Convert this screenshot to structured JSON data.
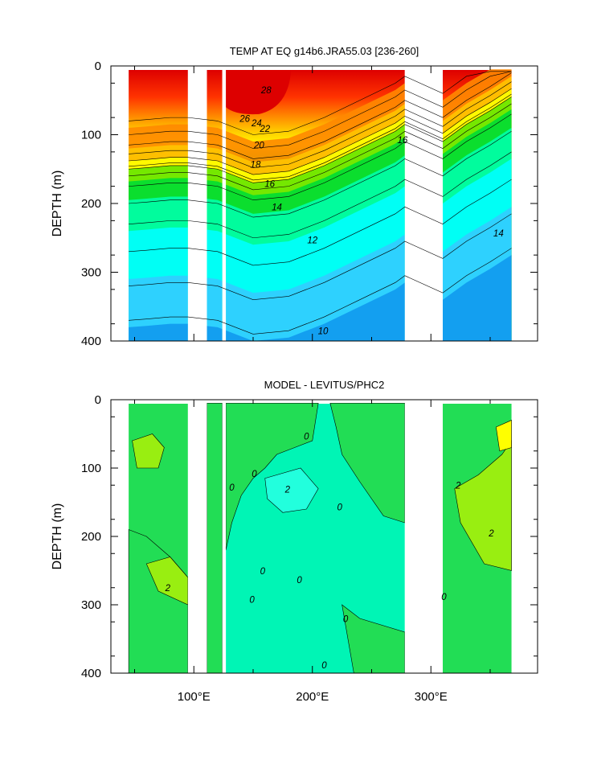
{
  "chart_data": [
    {
      "type": "heatmap",
      "title": "TEMP AT EQ g14b6.JRA55.03 [236-260]",
      "ylabel": "DEPTH (m)",
      "xlabel": "",
      "xlim": [
        30,
        390
      ],
      "ylim": [
        400,
        0
      ],
      "y_inverted": true,
      "xticks": [
        {
          "value": 100,
          "label": "100°E"
        },
        {
          "value": 200,
          "label": "200°E"
        },
        {
          "value": 300,
          "label": "300°E"
        }
      ],
      "yticks": [
        0,
        100,
        200,
        300,
        400
      ],
      "land_gaps": [
        [
          95,
          111
        ],
        [
          124,
          127
        ],
        [
          278,
          310
        ]
      ],
      "water_bands": [
        [
          45,
          95
        ],
        [
          111,
          124
        ],
        [
          127,
          278
        ],
        [
          310,
          368
        ]
      ],
      "thermocline": {
        "x": [
          45,
          60,
          80,
          95,
          120,
          150,
          180,
          210,
          240,
          270,
          278,
          310,
          330,
          350,
          368
        ],
        "depth_20C": [
          150,
          148,
          145,
          145,
          150,
          170,
          165,
          145,
          120,
          95,
          85,
          110,
          85,
          65,
          45
        ]
      },
      "contour_labels": [
        {
          "x": 161,
          "y": 40,
          "text": "28"
        },
        {
          "x": 143,
          "y": 81,
          "text": "26"
        },
        {
          "x": 153,
          "y": 88,
          "text": "24"
        },
        {
          "x": 160,
          "y": 96,
          "text": "22"
        },
        {
          "x": 155,
          "y": 120,
          "text": "20"
        },
        {
          "x": 152,
          "y": 148,
          "text": "18"
        },
        {
          "x": 164,
          "y": 176,
          "text": "16"
        },
        {
          "x": 170,
          "y": 210,
          "text": "14"
        },
        {
          "x": 200,
          "y": 258,
          "text": "12"
        },
        {
          "x": 209,
          "y": 390,
          "text": "10"
        },
        {
          "x": 276,
          "y": 112,
          "text": "16"
        },
        {
          "x": 357,
          "y": 248,
          "text": "14"
        }
      ]
    },
    {
      "type": "heatmap",
      "title": "MODEL - LEVITUS/PHC2",
      "ylabel": "DEPTH (m)",
      "xlabel": "",
      "xlim": [
        30,
        390
      ],
      "ylim": [
        400,
        0
      ],
      "y_inverted": true,
      "xticks": [
        {
          "value": 100,
          "label": "100°E"
        },
        {
          "value": 200,
          "label": "200°E"
        },
        {
          "value": 300,
          "label": "300°E"
        }
      ],
      "yticks": [
        0,
        100,
        200,
        300,
        400
      ],
      "land_gaps": [
        [
          95,
          111
        ],
        [
          124,
          127
        ],
        [
          278,
          310
        ]
      ],
      "water_bands": [
        [
          45,
          95
        ],
        [
          111,
          124
        ],
        [
          127,
          278
        ],
        [
          310,
          368
        ]
      ],
      "contour_labels": [
        {
          "x": 195,
          "y": 58,
          "text": "0"
        },
        {
          "x": 179,
          "y": 136,
          "text": "2"
        },
        {
          "x": 132,
          "y": 133,
          "text": "0"
        },
        {
          "x": 151,
          "y": 113,
          "text": "0"
        },
        {
          "x": 223,
          "y": 162,
          "text": "0"
        },
        {
          "x": 158,
          "y": 255,
          "text": "0"
        },
        {
          "x": 149,
          "y": 297,
          "text": "0"
        },
        {
          "x": 189,
          "y": 268,
          "text": "0"
        },
        {
          "x": 228,
          "y": 325,
          "text": "0"
        },
        {
          "x": 210,
          "y": 393,
          "text": "0"
        },
        {
          "x": 323,
          "y": 130,
          "text": "2"
        },
        {
          "x": 351,
          "y": 200,
          "text": "2"
        },
        {
          "x": 78,
          "y": 280,
          "text": "2"
        },
        {
          "x": 311,
          "y": 293,
          "text": "0"
        }
      ]
    }
  ]
}
